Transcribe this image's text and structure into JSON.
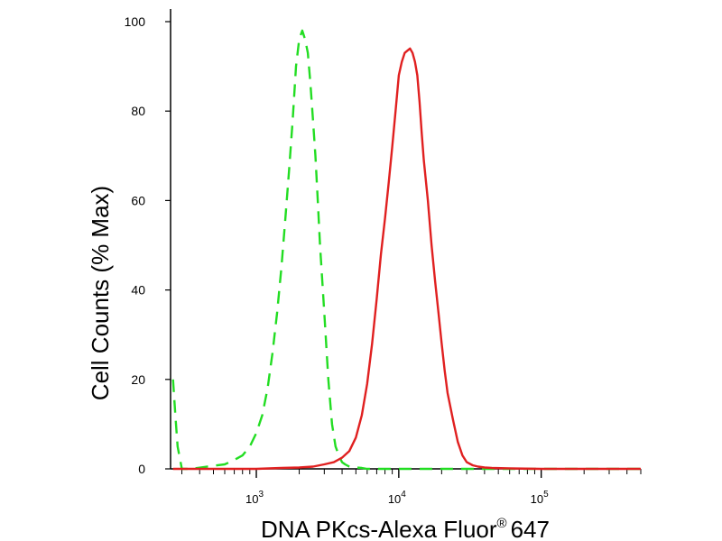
{
  "chart_data": {
    "type": "line",
    "xlabel": "DNA PKcs-Alexa Fluor",
    "xlabel_superscript": "®",
    "xlabel_suffix": "647",
    "ylabel": "Cell Counts (% Max)",
    "x_scale": "log",
    "xlim": [
      250,
      500000
    ],
    "ylim": [
      0,
      100
    ],
    "y_ticks": [
      0,
      20,
      40,
      60,
      80,
      100
    ],
    "x_ticks": [
      {
        "value": 1000,
        "base": "10",
        "exp": "3"
      },
      {
        "value": 10000,
        "base": "10",
        "exp": "4"
      },
      {
        "value": 100000,
        "base": "10",
        "exp": "5"
      }
    ],
    "grid": false,
    "legend": "none",
    "series": [
      {
        "color": "#22dd22",
        "style": "dashed",
        "x": [
          260,
          270,
          280,
          300,
          350,
          450,
          600,
          700,
          800,
          900,
          1000,
          1100,
          1200,
          1300,
          1400,
          1500,
          1600,
          1700,
          1800,
          1900,
          2000,
          2100,
          2200,
          2300,
          2400,
          2500,
          2600,
          2700,
          2800,
          3000,
          3200,
          3400,
          3600,
          3800,
          4000,
          4200,
          4500,
          5000,
          5500,
          6000,
          8000,
          10000,
          50000,
          500000
        ],
        "y": [
          20,
          12,
          5,
          0,
          0,
          0.5,
          1,
          2,
          3,
          5,
          8,
          12,
          18,
          26,
          35,
          45,
          56,
          67,
          78,
          90,
          96,
          98,
          96,
          93,
          86,
          78,
          70,
          60,
          50,
          35,
          20,
          10,
          5,
          3,
          1.5,
          1,
          0.5,
          0.3,
          0.2,
          0,
          0,
          0,
          0,
          0
        ]
      },
      {
        "color": "#e02020",
        "style": "solid",
        "x": [
          260,
          1000,
          1500,
          2000,
          2500,
          3000,
          3500,
          4000,
          4500,
          5000,
          5500,
          6000,
          6500,
          7000,
          7500,
          8000,
          8500,
          9000,
          9500,
          10000,
          10500,
          11000,
          11500,
          12000,
          12500,
          13000,
          13500,
          14000,
          14500,
          15000,
          16000,
          17000,
          18000,
          19000,
          20000,
          21000,
          22000,
          24000,
          26000,
          28000,
          30000,
          33000,
          36000,
          40000,
          45000,
          60000,
          100000,
          500000
        ],
        "y": [
          0,
          0,
          0.2,
          0.3,
          0.5,
          1,
          1.5,
          2.5,
          4,
          7,
          12,
          19,
          28,
          38,
          48,
          56,
          64,
          72,
          80,
          88,
          91,
          93,
          93.5,
          94,
          93,
          91,
          88,
          82,
          75,
          69,
          60,
          50,
          42,
          35,
          28,
          22,
          17,
          11,
          6,
          3,
          1.5,
          0.8,
          0.5,
          0.3,
          0.2,
          0.1,
          0,
          0
        ]
      }
    ]
  }
}
